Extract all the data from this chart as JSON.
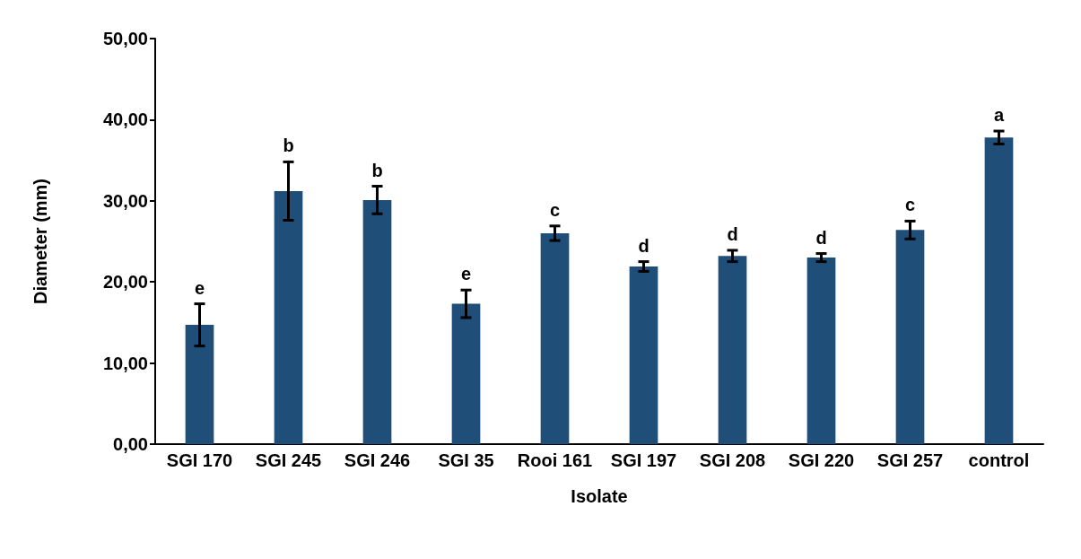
{
  "chart_data": {
    "type": "bar",
    "xlabel": "Isolate",
    "ylabel": "Diameter (mm)",
    "categories": [
      "SGI 170",
      "SGI 245",
      "SGI 246",
      "SGI 35",
      "Rooi 161",
      "SGI 197",
      "SGI 208",
      "SGI 220",
      "SGI 257",
      "control"
    ],
    "values": [
      14.7,
      31.2,
      30.1,
      17.3,
      26.0,
      21.9,
      23.2,
      23.0,
      26.4,
      37.8
    ],
    "errors": [
      2.6,
      3.6,
      1.7,
      1.7,
      0.9,
      0.6,
      0.7,
      0.5,
      1.1,
      0.8
    ],
    "value_labels": [
      "e",
      "b",
      "b",
      "e",
      "c",
      "d",
      "d",
      "d",
      "c",
      "a"
    ],
    "color": "#1f4e79",
    "ylim": [
      0,
      50
    ],
    "yticks": [
      {
        "value": 0,
        "label": "0,00"
      },
      {
        "value": 10,
        "label": "10,00"
      },
      {
        "value": 20,
        "label": "20,00"
      },
      {
        "value": 30,
        "label": "30,00"
      },
      {
        "value": 40,
        "label": "40,00"
      },
      {
        "value": 50,
        "label": "50,00"
      }
    ],
    "grid": false
  }
}
